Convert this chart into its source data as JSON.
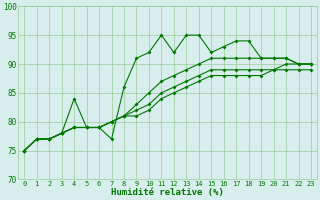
{
  "xlabel": "Humidité relative (%)",
  "xlim": [
    -0.5,
    23.5
  ],
  "ylim": [
    70,
    100
  ],
  "yticks": [
    70,
    75,
    80,
    85,
    90,
    95,
    100
  ],
  "xticks": [
    0,
    1,
    2,
    3,
    4,
    5,
    6,
    7,
    8,
    9,
    10,
    11,
    12,
    13,
    14,
    15,
    16,
    17,
    18,
    19,
    20,
    21,
    22,
    23
  ],
  "bg_color": "#d8eeed",
  "grid_color": "#99cc99",
  "line_color": "#007700",
  "series1": [
    75,
    77,
    77,
    78,
    84,
    79,
    79,
    77,
    86,
    91,
    92,
    95,
    92,
    95,
    95,
    92,
    93,
    94,
    94,
    91,
    91,
    91,
    90,
    90
  ],
  "series2": [
    75,
    77,
    77,
    78,
    79,
    79,
    79,
    80,
    81,
    83,
    85,
    87,
    88,
    89,
    90,
    91,
    91,
    91,
    91,
    91,
    91,
    91,
    90,
    90
  ],
  "series3": [
    75,
    77,
    77,
    78,
    79,
    79,
    79,
    80,
    81,
    82,
    83,
    85,
    86,
    87,
    88,
    89,
    89,
    89,
    89,
    89,
    89,
    90,
    90,
    90
  ],
  "series4": [
    75,
    77,
    77,
    78,
    79,
    79,
    79,
    80,
    81,
    81,
    82,
    84,
    85,
    86,
    87,
    88,
    88,
    88,
    88,
    88,
    89,
    89,
    89,
    89
  ]
}
